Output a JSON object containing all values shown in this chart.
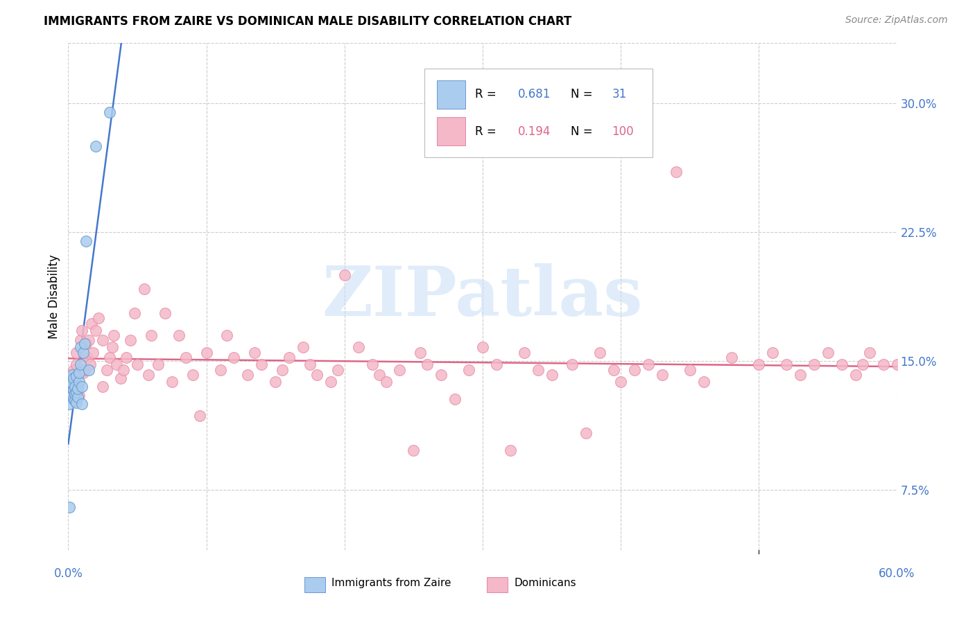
{
  "title": "IMMIGRANTS FROM ZAIRE VS DOMINICAN MALE DISABILITY CORRELATION CHART",
  "source": "Source: ZipAtlas.com",
  "ylabel": "Male Disability",
  "ytick_labels": [
    "7.5%",
    "15.0%",
    "22.5%",
    "30.0%"
  ],
  "ytick_values": [
    0.075,
    0.15,
    0.225,
    0.3
  ],
  "xlim": [
    0.0,
    0.6
  ],
  "ylim": [
    0.04,
    0.335
  ],
  "legend_r1_val": "0.681",
  "legend_n1_val": "31",
  "legend_r2_val": "0.194",
  "legend_n2_val": "100",
  "legend_label1": "Immigrants from Zaire",
  "legend_label2": "Dominicans",
  "zaire_facecolor": "#aaccee",
  "zaire_edgecolor": "#6699cc",
  "dominican_facecolor": "#f4b8c8",
  "dominican_edgecolor": "#e890a8",
  "blue_line_color": "#4477cc",
  "pink_line_color": "#dd6688",
  "grid_color": "#cccccc",
  "watermark_text": "ZIPatlas",
  "watermark_color": "#c8ddf5",
  "zaire_x": [
    0.001,
    0.001,
    0.002,
    0.002,
    0.002,
    0.003,
    0.003,
    0.003,
    0.004,
    0.004,
    0.004,
    0.005,
    0.005,
    0.005,
    0.006,
    0.006,
    0.006,
    0.007,
    0.007,
    0.008,
    0.008,
    0.009,
    0.009,
    0.01,
    0.01,
    0.011,
    0.012,
    0.013,
    0.015,
    0.02,
    0.03
  ],
  "zaire_y": [
    0.065,
    0.125,
    0.135,
    0.14,
    0.132,
    0.13,
    0.137,
    0.142,
    0.128,
    0.133,
    0.14,
    0.127,
    0.131,
    0.135,
    0.126,
    0.132,
    0.141,
    0.129,
    0.134,
    0.138,
    0.143,
    0.148,
    0.158,
    0.125,
    0.135,
    0.155,
    0.16,
    0.22,
    0.145,
    0.275,
    0.295
  ],
  "dominican_x": [
    0.002,
    0.003,
    0.004,
    0.005,
    0.006,
    0.006,
    0.007,
    0.008,
    0.009,
    0.01,
    0.011,
    0.012,
    0.013,
    0.014,
    0.015,
    0.016,
    0.017,
    0.018,
    0.02,
    0.022,
    0.025,
    0.025,
    0.028,
    0.03,
    0.032,
    0.033,
    0.035,
    0.038,
    0.04,
    0.042,
    0.045,
    0.048,
    0.05,
    0.055,
    0.058,
    0.06,
    0.065,
    0.07,
    0.075,
    0.08,
    0.085,
    0.09,
    0.095,
    0.1,
    0.11,
    0.115,
    0.12,
    0.13,
    0.135,
    0.14,
    0.15,
    0.155,
    0.16,
    0.17,
    0.175,
    0.18,
    0.19,
    0.195,
    0.2,
    0.21,
    0.22,
    0.225,
    0.23,
    0.24,
    0.25,
    0.255,
    0.26,
    0.27,
    0.28,
    0.29,
    0.3,
    0.31,
    0.32,
    0.33,
    0.34,
    0.35,
    0.365,
    0.375,
    0.385,
    0.395,
    0.4,
    0.41,
    0.42,
    0.43,
    0.44,
    0.45,
    0.46,
    0.48,
    0.5,
    0.51,
    0.52,
    0.53,
    0.54,
    0.55,
    0.56,
    0.57,
    0.575,
    0.58,
    0.59,
    0.6
  ],
  "dominican_y": [
    0.14,
    0.138,
    0.145,
    0.132,
    0.148,
    0.155,
    0.136,
    0.13,
    0.162,
    0.168,
    0.143,
    0.145,
    0.16,
    0.152,
    0.162,
    0.148,
    0.172,
    0.155,
    0.168,
    0.175,
    0.135,
    0.162,
    0.145,
    0.152,
    0.158,
    0.165,
    0.148,
    0.14,
    0.145,
    0.152,
    0.162,
    0.178,
    0.148,
    0.192,
    0.142,
    0.165,
    0.148,
    0.178,
    0.138,
    0.165,
    0.152,
    0.142,
    0.118,
    0.155,
    0.145,
    0.165,
    0.152,
    0.142,
    0.155,
    0.148,
    0.138,
    0.145,
    0.152,
    0.158,
    0.148,
    0.142,
    0.138,
    0.145,
    0.2,
    0.158,
    0.148,
    0.142,
    0.138,
    0.145,
    0.098,
    0.155,
    0.148,
    0.142,
    0.128,
    0.145,
    0.158,
    0.148,
    0.098,
    0.155,
    0.145,
    0.142,
    0.148,
    0.108,
    0.155,
    0.145,
    0.138,
    0.145,
    0.148,
    0.142,
    0.26,
    0.145,
    0.138,
    0.152,
    0.148,
    0.155,
    0.148,
    0.142,
    0.148,
    0.155,
    0.148,
    0.142,
    0.148,
    0.155,
    0.148,
    0.148
  ]
}
